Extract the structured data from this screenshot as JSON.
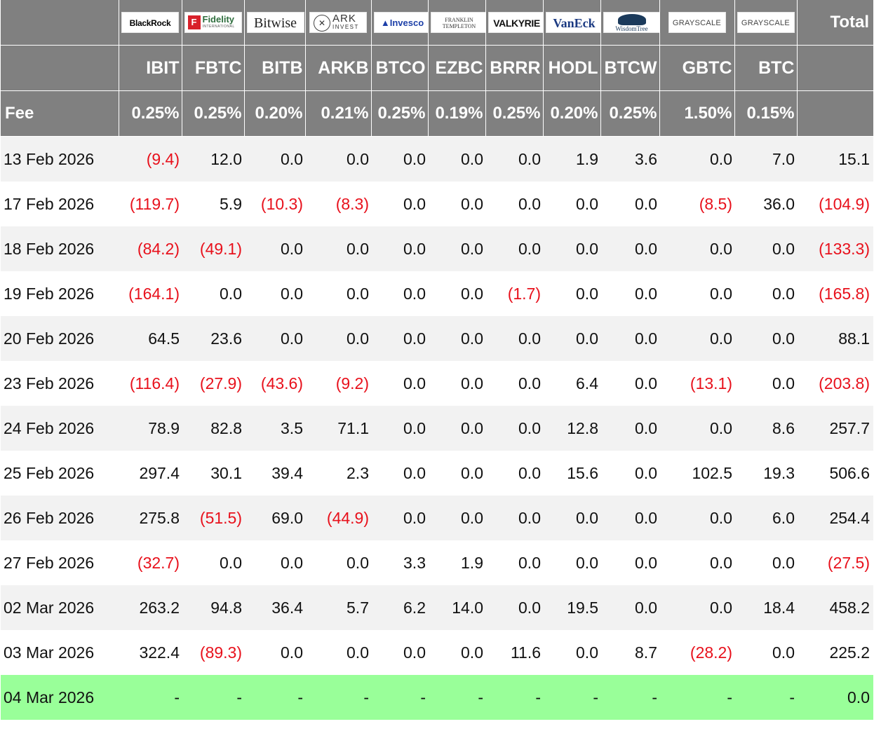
{
  "header": {
    "total_label": "Total",
    "fee_label": "Fee",
    "funds": [
      {
        "logo": "BlackRock",
        "ticker": "IBIT",
        "fee": "0.25%",
        "logo_class": "lg-blackrock"
      },
      {
        "logo": "Fidelity",
        "logo_sub": "INTERNATIONAL",
        "ticker": "FBTC",
        "fee": "0.25%",
        "logo_class": "lg-fidelity"
      },
      {
        "logo": "Bitwise",
        "ticker": "BITB",
        "fee": "0.20%",
        "logo_class": "lg-bitwise"
      },
      {
        "logo": "ARK",
        "logo_sub": "INVEST",
        "ticker": "ARKB",
        "fee": "0.21%",
        "logo_class": "lg-ark"
      },
      {
        "logo": "Invesco",
        "ticker": "BTCO",
        "fee": "0.25%",
        "logo_class": "lg-invesco"
      },
      {
        "logo": "FRANKLIN",
        "logo_sub": "TEMPLETON",
        "ticker": "EZBC",
        "fee": "0.19%",
        "logo_class": "lg-franklin"
      },
      {
        "logo": "VALKYRIE",
        "ticker": "BRRR",
        "fee": "0.25%",
        "logo_class": "lg-valkyrie"
      },
      {
        "logo": "VanEck",
        "ticker": "HODL",
        "fee": "0.20%",
        "logo_class": "lg-vaneck"
      },
      {
        "logo": "WisdomTree",
        "ticker": "BTCW",
        "fee": "0.25%",
        "logo_class": "lg-wisdomtree"
      },
      {
        "logo": "GRAYSCALE",
        "ticker": "GBTC",
        "fee": "1.50%",
        "logo_class": "lg-grayscale"
      },
      {
        "logo": "GRAYSCALE",
        "ticker": "BTC",
        "fee": "0.15%",
        "logo_class": "lg-grayscale"
      }
    ]
  },
  "rows": [
    {
      "date": "13 Feb 2026",
      "values": [
        "(9.4)",
        "12.0",
        "0.0",
        "0.0",
        "0.0",
        "0.0",
        "0.0",
        "1.9",
        "3.6",
        "0.0",
        "7.0"
      ],
      "total": "15.1"
    },
    {
      "date": "17 Feb 2026",
      "values": [
        "(119.7)",
        "5.9",
        "(10.3)",
        "(8.3)",
        "0.0",
        "0.0",
        "0.0",
        "0.0",
        "0.0",
        "(8.5)",
        "36.0"
      ],
      "total": "(104.9)"
    },
    {
      "date": "18 Feb 2026",
      "values": [
        "(84.2)",
        "(49.1)",
        "0.0",
        "0.0",
        "0.0",
        "0.0",
        "0.0",
        "0.0",
        "0.0",
        "0.0",
        "0.0"
      ],
      "total": "(133.3)"
    },
    {
      "date": "19 Feb 2026",
      "values": [
        "(164.1)",
        "0.0",
        "0.0",
        "0.0",
        "0.0",
        "0.0",
        "(1.7)",
        "0.0",
        "0.0",
        "0.0",
        "0.0"
      ],
      "total": "(165.8)"
    },
    {
      "date": "20 Feb 2026",
      "values": [
        "64.5",
        "23.6",
        "0.0",
        "0.0",
        "0.0",
        "0.0",
        "0.0",
        "0.0",
        "0.0",
        "0.0",
        "0.0"
      ],
      "total": "88.1"
    },
    {
      "date": "23 Feb 2026",
      "values": [
        "(116.4)",
        "(27.9)",
        "(43.6)",
        "(9.2)",
        "0.0",
        "0.0",
        "0.0",
        "6.4",
        "0.0",
        "(13.1)",
        "0.0"
      ],
      "total": "(203.8)"
    },
    {
      "date": "24 Feb 2026",
      "values": [
        "78.9",
        "82.8",
        "3.5",
        "71.1",
        "0.0",
        "0.0",
        "0.0",
        "12.8",
        "0.0",
        "0.0",
        "8.6"
      ],
      "total": "257.7"
    },
    {
      "date": "25 Feb 2026",
      "values": [
        "297.4",
        "30.1",
        "39.4",
        "2.3",
        "0.0",
        "0.0",
        "0.0",
        "15.6",
        "0.0",
        "102.5",
        "19.3"
      ],
      "total": "506.6"
    },
    {
      "date": "26 Feb 2026",
      "values": [
        "275.8",
        "(51.5)",
        "69.0",
        "(44.9)",
        "0.0",
        "0.0",
        "0.0",
        "0.0",
        "0.0",
        "0.0",
        "6.0"
      ],
      "total": "254.4"
    },
    {
      "date": "27 Feb 2026",
      "values": [
        "(32.7)",
        "0.0",
        "0.0",
        "0.0",
        "3.3",
        "1.9",
        "0.0",
        "0.0",
        "0.0",
        "0.0",
        "0.0"
      ],
      "total": "(27.5)"
    },
    {
      "date": "02 Mar 2026",
      "values": [
        "263.2",
        "94.8",
        "36.4",
        "5.7",
        "6.2",
        "14.0",
        "0.0",
        "19.5",
        "0.0",
        "0.0",
        "18.4"
      ],
      "total": "458.2"
    },
    {
      "date": "03 Mar 2026",
      "values": [
        "322.4",
        "(89.3)",
        "0.0",
        "0.0",
        "0.0",
        "0.0",
        "11.6",
        "0.0",
        "8.7",
        "(28.2)",
        "0.0"
      ],
      "total": "225.2"
    },
    {
      "date": "04 Mar 2026",
      "values": [
        "-",
        "-",
        "-",
        "-",
        "-",
        "-",
        "-",
        "-",
        "-",
        "-",
        "-"
      ],
      "total": "0.0",
      "highlight": true
    }
  ],
  "colors": {
    "header_bg": "#808080",
    "negative": "#e8111c",
    "row_alt": "#f2f2f2",
    "today_highlight": "#99ff99"
  }
}
